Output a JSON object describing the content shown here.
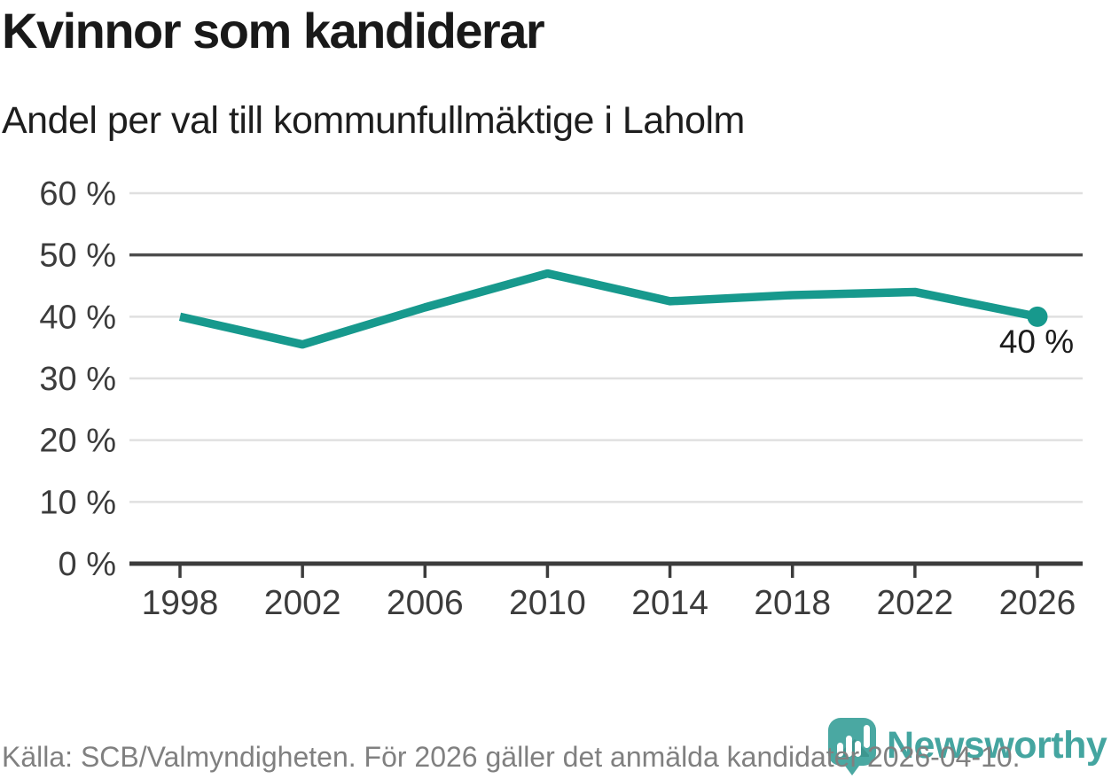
{
  "header": {
    "title": "Kvinnor som kandiderar",
    "subtitle": "Andel per val till kommunfullmäktige i Laholm"
  },
  "chart_data": {
    "type": "line",
    "title": "Kvinnor som kandiderar",
    "subtitle": "Andel per val till kommunfullmäktige i Laholm",
    "categories": [
      "1998",
      "2002",
      "2006",
      "2010",
      "2014",
      "2018",
      "2022",
      "2026"
    ],
    "values": [
      40,
      35.5,
      41.5,
      47,
      42.5,
      43.5,
      44,
      40
    ],
    "unit": "%",
    "ylim": [
      0,
      62
    ],
    "yticks": [
      {
        "value": 0,
        "label": "0 %"
      },
      {
        "value": 10,
        "label": "10 %"
      },
      {
        "value": 20,
        "label": "20 %"
      },
      {
        "value": 30,
        "label": "30 %"
      },
      {
        "value": 40,
        "label": "40 %"
      },
      {
        "value": 50,
        "label": "50 %"
      },
      {
        "value": 60,
        "label": "60 %"
      }
    ],
    "reference_line_value": 50,
    "grid": true,
    "legend": "none",
    "last_point_label": "40 %"
  },
  "colors": {
    "line": "#17998d",
    "dot": "#17998d",
    "grid": "#e0e0e0",
    "reference_line": "#4d4d4d",
    "axis": "#3c3c3c",
    "title_text": "#191919",
    "muted_text": "#808080",
    "logo": "#44a5a0"
  },
  "footer": {
    "source": "Källa: SCB/Valmyndigheten. För 2026 gäller det anmälda kandidater 2026-04-10.",
    "logo_text": "Newsworthy"
  }
}
